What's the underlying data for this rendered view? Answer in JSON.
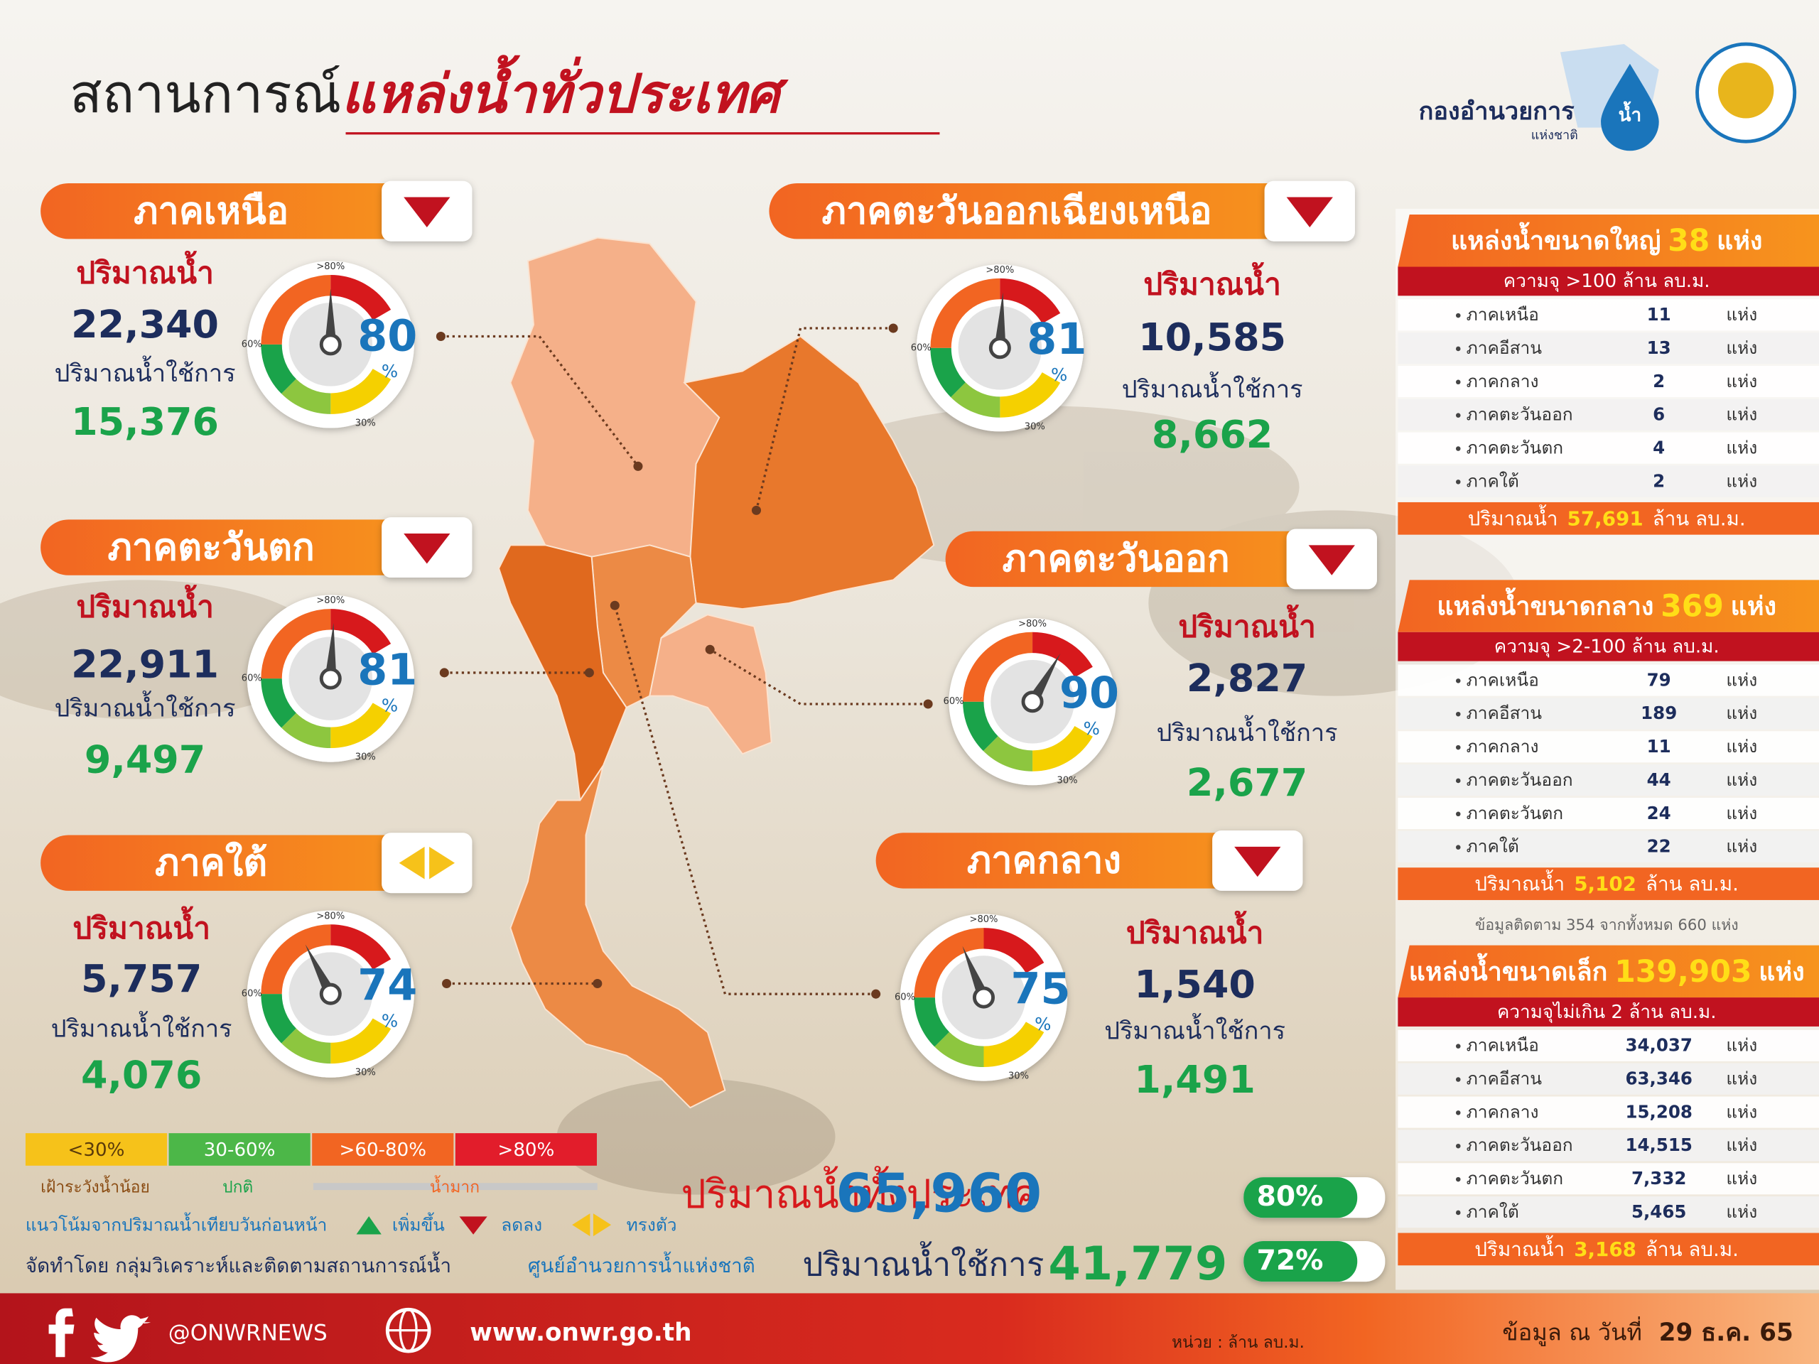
{
  "header": {
    "title": "สถานการณ์",
    "title_highlight": "แหล่งน้ำทั่วประเทศ",
    "logo_name": "กองอำนวยการ",
    "logo_water": "น้ำ",
    "logo_sub": "แห่งชาติ"
  },
  "gauge_labels": {
    "high": ">80%",
    "mid": "60%",
    "low": "30%"
  },
  "regions": [
    {
      "name": "ภาคเหนือ",
      "trend": "down",
      "volume_label": "ปริมาณน้ำ",
      "volume": "22,340",
      "usable_label": "ปริมาณน้ำใช้การ",
      "usable": "15,376",
      "percent": 80,
      "percent_unit": "%"
    },
    {
      "name": "ภาคตะวันออกเฉียงเหนือ",
      "trend": "down",
      "volume_label": "ปริมาณน้ำ",
      "volume": "10,585",
      "usable_label": "ปริมาณน้ำใช้การ",
      "usable": "8,662",
      "percent": 81,
      "percent_unit": "%"
    },
    {
      "name": "ภาคตะวันตก",
      "trend": "down",
      "volume_label": "ปริมาณน้ำ",
      "volume": "22,911",
      "usable_label": "ปริมาณน้ำใช้การ",
      "usable": "9,497",
      "percent": 81,
      "percent_unit": "%"
    },
    {
      "name": "ภาคตะวันออก",
      "trend": "down",
      "volume_label": "ปริมาณน้ำ",
      "volume": "2,827",
      "usable_label": "ปริมาณน้ำใช้การ",
      "usable": "2,677",
      "percent": 90,
      "percent_unit": "%"
    },
    {
      "name": "ภาคใต้",
      "trend": "steady",
      "volume_label": "ปริมาณน้ำ",
      "volume": "5,757",
      "usable_label": "ปริมาณน้ำใช้การ",
      "usable": "4,076",
      "percent": 74,
      "percent_unit": "%"
    },
    {
      "name": "ภาคกลาง",
      "trend": "down",
      "volume_label": "ปริมาณน้ำ",
      "volume": "1,540",
      "usable_label": "ปริมาณน้ำใช้การ",
      "usable": "1,491",
      "percent": 75,
      "percent_unit": "%"
    }
  ],
  "legend": {
    "levels": [
      {
        "label": "<30%",
        "color": "#f6c21a"
      },
      {
        "label": "30-60%",
        "color": "#4cb748"
      },
      {
        "label": ">60-80%",
        "color": "#f26522"
      },
      {
        "label": ">80%",
        "color": "#e21d2b"
      }
    ],
    "low": "เฝ้าระวังน้ำน้อย",
    "normal": "ปกติ",
    "high": "น้ำมาก",
    "trend_title": "แนวโน้มจากปริมาณน้ำเทียบวันก่อนหน้า",
    "trend_up": "เพิ่มขึ้น",
    "trend_down": "ลดลง",
    "trend_steady": "ทรงตัว"
  },
  "credit": {
    "prefix": "จัดทำโดย กลุ่มวิเคราะห์และติดตามสถานการณ์น้ำ",
    "org": "ศูนย์อำนวยการน้ำแห่งชาติ"
  },
  "totals": [
    {
      "label": "ปริมาณน้ำทั้งประเทศ",
      "value": "65,960",
      "percent": "80%"
    },
    {
      "label": "ปริมาณน้ำใช้การ",
      "value": "41,779",
      "percent": "72%"
    }
  ],
  "reservoirs": [
    {
      "title": "แหล่งน้ำขนาดใหญ่",
      "count": "38",
      "unit": "แห่ง",
      "capacity": "ความจุ >100 ล้าน ลบ.ม.",
      "rows": [
        {
          "name": "ภาคเหนือ",
          "count": "11"
        },
        {
          "name": "ภาคอีสาน",
          "count": "13"
        },
        {
          "name": "ภาคกลาง",
          "count": "2"
        },
        {
          "name": "ภาคตะวันออก",
          "count": "6"
        },
        {
          "name": "ภาคตะวันตก",
          "count": "4"
        },
        {
          "name": "ภาคใต้",
          "count": "2"
        }
      ],
      "footer_label": "ปริมาณน้ำ",
      "footer_value": "57,691",
      "footer_unit": "ล้าน ลบ.ม."
    },
    {
      "title": "แหล่งน้ำขนาดกลาง",
      "count": "369",
      "unit": "แห่ง",
      "capacity": "ความจุ >2-100 ล้าน ลบ.ม.",
      "rows": [
        {
          "name": "ภาคเหนือ",
          "count": "79"
        },
        {
          "name": "ภาคอีสาน",
          "count": "189"
        },
        {
          "name": "ภาคกลาง",
          "count": "11"
        },
        {
          "name": "ภาคตะวันออก",
          "count": "44"
        },
        {
          "name": "ภาคตะวันตก",
          "count": "24"
        },
        {
          "name": "ภาคใต้",
          "count": "22"
        }
      ],
      "footer_label": "ปริมาณน้ำ",
      "footer_value": "5,102",
      "footer_unit": "ล้าน ลบ.ม.",
      "note": "ข้อมูลติดตาม 354 จากทั้งหมด 660 แห่ง"
    },
    {
      "title": "แหล่งน้ำขนาดเล็ก",
      "count": "139,903",
      "unit": "แห่ง",
      "capacity": "ความจุไม่เกิน 2 ล้าน ลบ.ม.",
      "rows": [
        {
          "name": "ภาคเหนือ",
          "count": "34,037"
        },
        {
          "name": "ภาคอีสาน",
          "count": "63,346"
        },
        {
          "name": "ภาคกลาง",
          "count": "15,208"
        },
        {
          "name": "ภาคตะวันออก",
          "count": "14,515"
        },
        {
          "name": "ภาคตะวันตก",
          "count": "7,332"
        },
        {
          "name": "ภาคใต้",
          "count": "5,465"
        }
      ],
      "footer_label": "ปริมาณน้ำ",
      "footer_value": "3,168",
      "footer_unit": "ล้าน ลบ.ม."
    }
  ],
  "footer": {
    "social": "@ONWRNEWS",
    "website": "www.onwr.go.th",
    "unit_note": "หน่วย : ล้าน ลบ.ม.",
    "date_label": "ข้อมูล ณ วันที่",
    "date": "29 ธ.ค. 65"
  }
}
